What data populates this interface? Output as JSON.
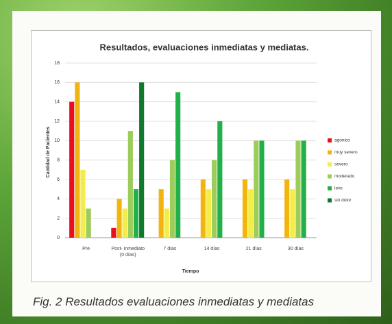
{
  "chart_data": {
    "type": "bar",
    "title": "Resultados, evaluaciones inmediatas y mediatas.",
    "y_label": "Cantidad de Pacientes",
    "x_label": "Tiempo",
    "categories": [
      "Pre",
      "Post- inmediato (0 días)",
      "7 días",
      "14 días",
      "21 días",
      "30 días"
    ],
    "series": [
      {
        "name": "agonico",
        "color": "#e8101e",
        "values": [
          14,
          1,
          0,
          0,
          0,
          0
        ]
      },
      {
        "name": "muy severo",
        "color": "#f2b50f",
        "values": [
          16,
          4,
          5,
          6,
          6,
          6
        ]
      },
      {
        "name": "severo",
        "color": "#f3ec4a",
        "values": [
          7,
          3,
          3,
          5,
          5,
          5
        ]
      },
      {
        "name": "moderado",
        "color": "#9ccc5a",
        "values": [
          3,
          11,
          8,
          8,
          10,
          10
        ]
      },
      {
        "name": "leve",
        "color": "#22b04a",
        "values": [
          0,
          5,
          15,
          12,
          10,
          10
        ]
      },
      {
        "name": "sin dolor",
        "color": "#0f7a2e",
        "values": [
          0,
          16,
          0,
          0,
          0,
          0
        ]
      }
    ],
    "ylim": [
      0,
      18
    ],
    "yticks": [
      0,
      2,
      4,
      6,
      8,
      10,
      12,
      14,
      16,
      18
    ],
    "grid": true,
    "legend": "right"
  },
  "caption": "Fig. 2 Resultados evaluaciones inmediatas y mediatas"
}
